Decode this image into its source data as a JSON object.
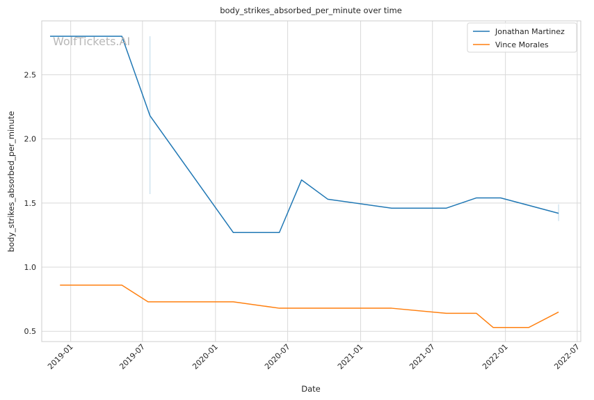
{
  "chart_data": {
    "type": "line",
    "title": "body_strikes_absorbed_per_minute over time",
    "xlabel": "Date",
    "ylabel": "body_strikes_absorbed_per_minute",
    "watermark": "WolfTickets.AI",
    "ylim": [
      0.42,
      2.92
    ],
    "xlim": [
      "2018-10-20",
      "2022-07-10"
    ],
    "x_ticks": [
      "2019-01-01",
      "2019-07-01",
      "2020-01-01",
      "2020-07-01",
      "2021-01-01",
      "2021-07-01",
      "2022-01-01",
      "2022-07-01"
    ],
    "x_tick_labels": [
      "2019-01",
      "2019-07",
      "2020-01",
      "2020-07",
      "2021-01",
      "2021-07",
      "2022-01",
      "2022-07"
    ],
    "y_ticks": [
      0.5,
      1.0,
      1.5,
      2.0,
      2.5
    ],
    "y_tick_labels": [
      "0.5",
      "1.0",
      "1.5",
      "2.0",
      "2.5"
    ],
    "grid": true,
    "legend_position": "top-right",
    "series": [
      {
        "name": "Jonathan Martinez",
        "color": "#1f77b4",
        "points": [
          {
            "x": "2018-11-10",
            "y": 2.8
          },
          {
            "x": "2019-05-10",
            "y": 2.8
          },
          {
            "x": "2019-07-20",
            "y": 2.18
          },
          {
            "x": "2020-02-15",
            "y": 1.27
          },
          {
            "x": "2020-06-10",
            "y": 1.27
          },
          {
            "x": "2020-08-05",
            "y": 1.68
          },
          {
            "x": "2020-10-10",
            "y": 1.53
          },
          {
            "x": "2021-03-20",
            "y": 1.46
          },
          {
            "x": "2021-08-05",
            "y": 1.46
          },
          {
            "x": "2021-10-20",
            "y": 1.54
          },
          {
            "x": "2021-12-20",
            "y": 1.54
          },
          {
            "x": "2022-05-15",
            "y": 1.42
          }
        ]
      },
      {
        "name": "Vince Morales",
        "color": "#ff7f0e",
        "points": [
          {
            "x": "2018-12-05",
            "y": 0.86
          },
          {
            "x": "2019-05-10",
            "y": 0.86
          },
          {
            "x": "2019-07-15",
            "y": 0.73
          },
          {
            "x": "2020-02-15",
            "y": 0.73
          },
          {
            "x": "2020-06-10",
            "y": 0.68
          },
          {
            "x": "2021-03-20",
            "y": 0.68
          },
          {
            "x": "2021-08-05",
            "y": 0.64
          },
          {
            "x": "2021-10-20",
            "y": 0.64
          },
          {
            "x": "2021-12-01",
            "y": 0.53
          },
          {
            "x": "2022-03-01",
            "y": 0.53
          },
          {
            "x": "2022-05-15",
            "y": 0.65
          }
        ]
      }
    ],
    "error_bars": [
      {
        "series": "Jonathan Martinez",
        "x": "2019-07-20",
        "low": 1.57,
        "high": 2.8
      },
      {
        "series": "Jonathan Martinez",
        "x": "2022-05-15",
        "low": 1.36,
        "high": 1.49
      }
    ]
  }
}
